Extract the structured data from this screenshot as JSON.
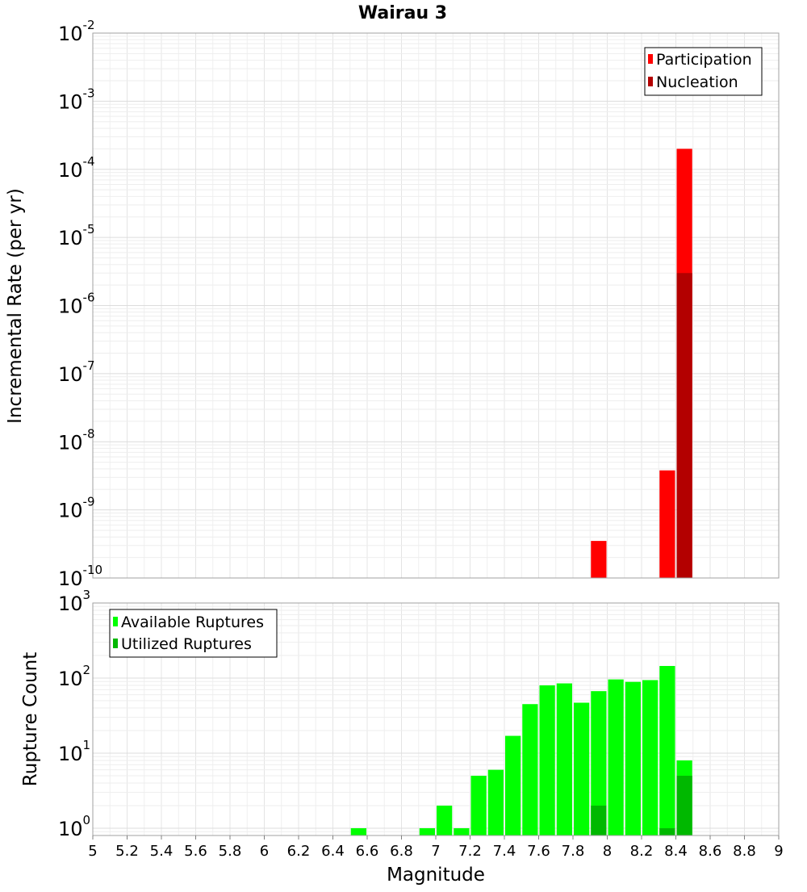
{
  "chart_data": [
    {
      "type": "bar",
      "title": "Wairau 3",
      "xlabel": "",
      "ylabel": "Incremental Rate (per yr)",
      "xlim": [
        5,
        9
      ],
      "ylim": [
        1e-10,
        0.01
      ],
      "yscale": "log",
      "grid": true,
      "legend_placement": "top-right",
      "yticks": [
        {
          "base": "10",
          "exp": "-2",
          "value": 0.01
        },
        {
          "base": "10",
          "exp": "-3",
          "value": 0.001
        },
        {
          "base": "10",
          "exp": "-4",
          "value": 0.0001
        },
        {
          "base": "10",
          "exp": "-5",
          "value": 1e-05
        },
        {
          "base": "10",
          "exp": "-6",
          "value": 1e-06
        },
        {
          "base": "10",
          "exp": "-7",
          "value": 1e-07
        },
        {
          "base": "10",
          "exp": "-8",
          "value": 1e-08
        },
        {
          "base": "10",
          "exp": "-9",
          "value": 1e-09
        },
        {
          "base": "10",
          "exp": "-10",
          "value": 1e-10
        }
      ],
      "series": [
        {
          "name": "Participation",
          "color": "#ff0000",
          "points": [
            {
              "x": 7.95,
              "y": 3.5e-10
            },
            {
              "x": 8.35,
              "y": 3.8e-09
            },
            {
              "x": 8.45,
              "y": 0.0002
            }
          ]
        },
        {
          "name": "Nucleation",
          "color": "#b30000",
          "points": [
            {
              "x": 8.45,
              "y": 3e-06
            }
          ]
        }
      ]
    },
    {
      "type": "bar",
      "xlabel": "Magnitude",
      "ylabel": "Rupture Count",
      "xlim": [
        5,
        9
      ],
      "ylim": [
        0.8,
        1000
      ],
      "yscale": "log",
      "grid": true,
      "legend_placement": "top-left",
      "xticks": [
        "5",
        "5.2",
        "5.4",
        "5.6",
        "5.8",
        "6",
        "6.2",
        "6.4",
        "6.6",
        "6.8",
        "7",
        "7.2",
        "7.4",
        "7.6",
        "7.8",
        "8",
        "8.2",
        "8.4",
        "8.6",
        "8.8",
        "9"
      ],
      "yticks": [
        {
          "base": "10",
          "exp": "3",
          "value": 1000
        },
        {
          "base": "10",
          "exp": "2",
          "value": 100
        },
        {
          "base": "10",
          "exp": "1",
          "value": 10
        },
        {
          "base": "10",
          "exp": "0",
          "value": 1
        }
      ],
      "series": [
        {
          "name": "Available Ruptures",
          "color": "#00ff00",
          "points": [
            {
              "x": 6.55,
              "y": 1
            },
            {
              "x": 6.95,
              "y": 1
            },
            {
              "x": 7.05,
              "y": 2
            },
            {
              "x": 7.15,
              "y": 1
            },
            {
              "x": 7.25,
              "y": 5
            },
            {
              "x": 7.35,
              "y": 6
            },
            {
              "x": 7.45,
              "y": 17
            },
            {
              "x": 7.55,
              "y": 45
            },
            {
              "x": 7.65,
              "y": 80
            },
            {
              "x": 7.75,
              "y": 85
            },
            {
              "x": 7.85,
              "y": 47
            },
            {
              "x": 7.95,
              "y": 67
            },
            {
              "x": 8.05,
              "y": 96
            },
            {
              "x": 8.15,
              "y": 89
            },
            {
              "x": 8.25,
              "y": 94
            },
            {
              "x": 8.35,
              "y": 145
            },
            {
              "x": 8.45,
              "y": 8
            }
          ]
        },
        {
          "name": "Utilized Ruptures",
          "color": "#00b800",
          "points": [
            {
              "x": 7.95,
              "y": 2
            },
            {
              "x": 8.35,
              "y": 1
            },
            {
              "x": 8.45,
              "y": 5
            }
          ]
        }
      ]
    }
  ]
}
